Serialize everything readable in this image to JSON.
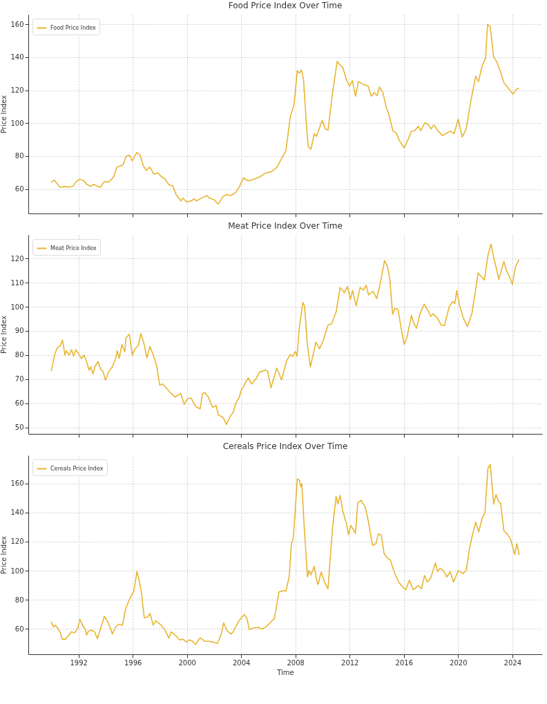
{
  "chart_data": [
    {
      "type": "line",
      "title": "Food Price Index Over Time",
      "ylabel": "Price Index",
      "xlim": [
        1988.3,
        2026.2
      ],
      "ylim": [
        45.2,
        165.9
      ],
      "xticks": [
        1992,
        1996,
        2000,
        2004,
        2008,
        2012,
        2016,
        2020,
        2024
      ],
      "yticks": [
        60,
        80,
        100,
        120,
        140,
        160
      ],
      "grid": true,
      "legend": "top left",
      "tick_labels": "y",
      "series": [
        {
          "name": "Food Price Index",
          "color": "#e8b530",
          "x": [
            1990.0,
            1990.2,
            1990.65,
            1991.04,
            1991.3,
            1991.63,
            1991.8,
            1992.1,
            1992.4,
            1992.6,
            1992.9,
            1993.1,
            1993.6,
            1993.9,
            1994.2,
            1994.4,
            1994.6,
            1994.83,
            1995.1,
            1995.3,
            1995.5,
            1995.75,
            1995.97,
            1996.3,
            1996.55,
            1996.77,
            1997.0,
            1997.27,
            1997.55,
            1997.86,
            1998.1,
            1998.35,
            1998.67,
            1998.95,
            1999.2,
            1999.55,
            1999.7,
            1999.97,
            2000.3,
            2000.55,
            2000.7,
            2000.98,
            2001.2,
            2001.48,
            2001.65,
            2001.99,
            2002.3,
            2002.66,
            2002.9,
            2003.25,
            2003.6,
            2003.85,
            2004.18,
            2004.52,
            2004.77,
            2005.2,
            2005.45,
            2005.8,
            2006.2,
            2006.62,
            2006.96,
            2007.3,
            2007.63,
            2007.89,
            2008.14,
            2008.28,
            2008.44,
            2008.6,
            2008.8,
            2008.94,
            2009.14,
            2009.4,
            2009.55,
            2009.98,
            2010.2,
            2010.41,
            2010.74,
            2011.08,
            2011.25,
            2011.5,
            2011.76,
            2011.98,
            2012.2,
            2012.43,
            2012.65,
            2013.02,
            2013.36,
            2013.6,
            2013.8,
            2014.03,
            2014.2,
            2014.45,
            2014.7,
            2014.88,
            2015.2,
            2015.45,
            2015.63,
            2016.02,
            2016.3,
            2016.56,
            2016.81,
            2017.06,
            2017.26,
            2017.53,
            2017.8,
            2018.0,
            2018.22,
            2018.5,
            2018.84,
            2019.17,
            2019.4,
            2019.7,
            2020.01,
            2020.3,
            2020.6,
            2020.94,
            2021.3,
            2021.5,
            2021.78,
            2022.03,
            2022.17,
            2022.37,
            2022.62,
            2022.87,
            2023.13,
            2023.38,
            2023.63,
            2024.05,
            2024.3,
            2024.47
          ],
          "values": [
            64.2,
            65.5,
            61,
            61.6,
            61,
            62,
            64.2,
            66.1,
            65,
            62.9,
            61.6,
            62.9,
            61,
            64.6,
            64.2,
            65.5,
            67.6,
            73.3,
            74,
            75,
            79.8,
            80.6,
            77.2,
            82.2,
            80.6,
            74.3,
            71.3,
            73.3,
            69.1,
            69.8,
            67.6,
            66.5,
            62.6,
            62,
            56.7,
            52.8,
            54.5,
            52.2,
            52.8,
            54.1,
            52.8,
            54.1,
            55,
            56.1,
            54.5,
            53.7,
            50.9,
            55.4,
            56.7,
            56.1,
            58,
            61.3,
            66.8,
            65,
            65.5,
            66.8,
            67.8,
            69.8,
            70.4,
            73,
            78.2,
            83.4,
            104.3,
            110.8,
            131.9,
            130.3,
            132.3,
            126.4,
            100.4,
            86.1,
            84.1,
            93.6,
            91.9,
            101.7,
            96.5,
            95.8,
            118.6,
            137.5,
            135.6,
            133.6,
            126.4,
            122.5,
            125.8,
            116.3,
            125.2,
            123.5,
            122.5,
            116.3,
            118.6,
            116.7,
            121.9,
            118.6,
            109.5,
            105.6,
            95.2,
            93.9,
            90,
            85,
            90,
            95.2,
            95.5,
            98.1,
            95.5,
            100.2,
            99.2,
            96.5,
            98.9,
            95.5,
            92.4,
            93.9,
            95.2,
            93.6,
            102.4,
            91.6,
            96.5,
            113.5,
            128.5,
            125.2,
            135,
            139.5,
            160,
            158.4,
            140.2,
            136.9,
            131,
            124.5,
            121.9,
            117.6,
            120.6,
            121
          ]
        }
      ]
    },
    {
      "type": "line",
      "title": "Meat Price Index Over Time",
      "ylabel": "Price Index",
      "xlim": [
        1988.3,
        2026.2
      ],
      "ylim": [
        47.3,
        129.8
      ],
      "xticks": [
        1992,
        1996,
        2000,
        2004,
        2008,
        2012,
        2016,
        2020,
        2024
      ],
      "yticks": [
        50,
        60,
        70,
        80,
        90,
        100,
        110,
        120
      ],
      "grid": true,
      "legend": "top left",
      "tick_labels": "y",
      "series": [
        {
          "name": "Meat Price Index",
          "color": "#e8b530",
          "x": [
            1990.0,
            1990.25,
            1990.45,
            1990.65,
            1990.82,
            1991.0,
            1991.1,
            1991.3,
            1991.5,
            1991.63,
            1991.8,
            1991.97,
            1992.22,
            1992.4,
            1992.56,
            1992.78,
            1992.9,
            1993.07,
            1993.24,
            1993.45,
            1993.62,
            1993.8,
            1993.99,
            1994.24,
            1994.5,
            1994.74,
            1994.86,
            1995.0,
            1995.2,
            1995.42,
            1995.5,
            1995.75,
            1995.97,
            1996.17,
            1996.42,
            1996.6,
            1996.82,
            1997.05,
            1997.27,
            1997.52,
            1997.77,
            1997.99,
            1998.22,
            1998.5,
            1998.78,
            1999.12,
            1999.54,
            1999.8,
            2000.04,
            2000.3,
            2000.64,
            2000.98,
            2001.15,
            2001.32,
            2001.57,
            2001.9,
            2002.15,
            2002.32,
            2002.66,
            2002.91,
            2003.16,
            2003.42,
            2003.6,
            2003.84,
            2004.0,
            2004.18,
            2004.52,
            2004.77,
            2005.1,
            2005.35,
            2005.8,
            2005.95,
            2006.2,
            2006.62,
            2006.98,
            2007.37,
            2007.63,
            2007.8,
            2008.0,
            2008.12,
            2008.3,
            2008.55,
            2008.67,
            2008.89,
            2009.1,
            2009.32,
            2009.51,
            2009.78,
            2010.06,
            2010.4,
            2010.68,
            2011.0,
            2011.3,
            2011.6,
            2011.84,
            2012.05,
            2012.22,
            2012.48,
            2012.77,
            2013.02,
            2013.22,
            2013.39,
            2013.73,
            2014.0,
            2014.23,
            2014.57,
            2014.79,
            2014.96,
            2015.17,
            2015.34,
            2015.57,
            2015.8,
            2016.02,
            2016.22,
            2016.56,
            2016.72,
            2016.93,
            2017.2,
            2017.5,
            2017.8,
            2017.98,
            2018.15,
            2018.5,
            2018.75,
            2019.0,
            2019.34,
            2019.6,
            2019.76,
            2019.9,
            2020.13,
            2020.4,
            2020.68,
            2021.02,
            2021.27,
            2021.47,
            2021.74,
            2021.94,
            2022.2,
            2022.42,
            2022.62,
            2022.8,
            2023.0,
            2023.38,
            2023.55,
            2023.8,
            2024.0,
            2024.22,
            2024.47
          ],
          "values": [
            73.5,
            80.4,
            83.1,
            83.8,
            86.2,
            80,
            81.8,
            80,
            82.2,
            79.5,
            82.2,
            80.9,
            78.5,
            80,
            77.8,
            73.7,
            75.1,
            72.2,
            75.5,
            77.3,
            74.2,
            73.3,
            69.6,
            73.3,
            75.1,
            78.6,
            81.8,
            78.6,
            84.4,
            81.3,
            87.1,
            88.6,
            80,
            82.6,
            84,
            88.9,
            85,
            78.8,
            83.5,
            80,
            75.5,
            67.5,
            68,
            66.2,
            64.4,
            62.6,
            64,
            59.5,
            61.9,
            62.2,
            58.6,
            57.7,
            64,
            64.4,
            62.6,
            58.2,
            59.1,
            55.1,
            54.2,
            51.2,
            54.2,
            56.4,
            60,
            62.2,
            65.3,
            67.1,
            70.5,
            68,
            70.2,
            72.9,
            73.7,
            73.3,
            66.4,
            74.6,
            69.7,
            77.8,
            80.2,
            79.4,
            81.5,
            79.5,
            92,
            101.8,
            100.4,
            84,
            75.1,
            80.4,
            85.3,
            82.6,
            86.2,
            92.4,
            92.9,
            97.8,
            108,
            105.8,
            108.4,
            103.1,
            106.7,
            100.4,
            108,
            106.9,
            108.9,
            104.9,
            106.4,
            103.4,
            108.9,
            119.1,
            116.9,
            111.5,
            96.9,
            99.3,
            98.9,
            91.1,
            84.4,
            87.1,
            96.4,
            93.3,
            91.1,
            97.3,
            101.1,
            98.2,
            96,
            97.1,
            95.1,
            92.4,
            92.2,
            100,
            102.2,
            101.3,
            106.7,
            100,
            95.1,
            91.8,
            97.3,
            106.2,
            114,
            112.3,
            111.1,
            121.3,
            126,
            120.6,
            116.4,
            111.4,
            118.8,
            115.3,
            112.3,
            109.3,
            116.4,
            119.4
          ]
        }
      ]
    },
    {
      "type": "line",
      "title": "Cereals Price Index Over Time",
      "xlabel": "Time",
      "ylabel": "Price Index",
      "xlim": [
        1988.3,
        2026.2
      ],
      "ylim": [
        42.4,
        179.5
      ],
      "xticks": [
        1992,
        1996,
        2000,
        2004,
        2008,
        2012,
        2016,
        2020,
        2024
      ],
      "yticks": [
        60,
        80,
        100,
        120,
        140,
        160
      ],
      "grid": true,
      "legend": "top left",
      "series": [
        {
          "name": "Cereals Price Index",
          "color": "#e8b530",
          "x": [
            1990.0,
            1990.15,
            1990.29,
            1990.45,
            1990.66,
            1990.79,
            1991.04,
            1991.3,
            1991.47,
            1991.72,
            1991.97,
            1992.1,
            1992.3,
            1992.5,
            1992.6,
            1992.72,
            1992.98,
            1993.18,
            1993.4,
            1993.66,
            1993.91,
            1994.13,
            1994.3,
            1994.5,
            1994.75,
            1994.97,
            1995.25,
            1995.47,
            1995.75,
            1996.09,
            1996.31,
            1996.52,
            1996.65,
            1996.85,
            1997.1,
            1997.27,
            1997.52,
            1997.69,
            1998.03,
            1998.37,
            1998.67,
            1998.84,
            1999.12,
            1999.46,
            1999.7,
            1999.97,
            2000.14,
            2000.39,
            2000.64,
            2000.98,
            2001.32,
            2001.65,
            2001.9,
            2002.24,
            2002.54,
            2002.71,
            2002.95,
            2003.25,
            2003.42,
            2003.59,
            2003.84,
            2004.23,
            2004.43,
            2004.6,
            2004.94,
            2005.28,
            2005.53,
            2005.86,
            2006.11,
            2006.45,
            2006.79,
            2007.13,
            2007.3,
            2007.55,
            2007.71,
            2007.83,
            2007.97,
            2008.14,
            2008.3,
            2008.39,
            2008.47,
            2008.64,
            2008.89,
            2009.0,
            2009.14,
            2009.39,
            2009.55,
            2009.67,
            2009.9,
            2010.15,
            2010.4,
            2010.74,
            2011.0,
            2011.13,
            2011.3,
            2011.5,
            2011.76,
            2011.92,
            2012.09,
            2012.43,
            2012.6,
            2012.85,
            2013.15,
            2013.36,
            2013.69,
            2013.94,
            2014.11,
            2014.33,
            2014.54,
            2014.79,
            2015.0,
            2015.3,
            2015.63,
            2015.88,
            2016.14,
            2016.4,
            2016.69,
            2017.06,
            2017.3,
            2017.53,
            2017.73,
            2017.98,
            2018.32,
            2018.49,
            2018.66,
            2018.91,
            2019.16,
            2019.42,
            2019.67,
            2020.01,
            2020.35,
            2020.6,
            2020.85,
            2021.07,
            2021.3,
            2021.52,
            2021.78,
            2021.98,
            2022.2,
            2022.37,
            2022.62,
            2022.8,
            2022.99,
            2023.13,
            2023.38,
            2023.63,
            2023.88,
            2024.17,
            2024.34,
            2024.5
          ],
          "values": [
            64.6,
            61.2,
            62.4,
            60.6,
            57.2,
            52.8,
            52.8,
            55.7,
            57.9,
            57.2,
            60.9,
            66.5,
            62.4,
            59.4,
            55.7,
            58.2,
            59,
            57.9,
            53.2,
            60.9,
            68.6,
            65.3,
            61.6,
            56.4,
            61.2,
            63.1,
            62.4,
            73.5,
            80.1,
            86.3,
            99.6,
            91.2,
            84.6,
            67.5,
            68,
            70.5,
            62.4,
            65.6,
            63.1,
            59.4,
            53.5,
            57.9,
            55.7,
            52.3,
            52.8,
            50.8,
            52.3,
            51.7,
            49.1,
            53.8,
            51.3,
            51.3,
            50.8,
            49.8,
            56.4,
            64.1,
            58.7,
            56.4,
            57.9,
            61.2,
            65.6,
            69.8,
            66.8,
            59.4,
            60.6,
            60.9,
            59.7,
            61.6,
            63.8,
            67.1,
            85.3,
            86.3,
            85.7,
            96.4,
            119.3,
            121.2,
            139.3,
            163.3,
            162.2,
            157.8,
            160,
            131.9,
            95.7,
            100.1,
            97.1,
            103,
            94.2,
            90.5,
            99.1,
            92,
            87.5,
            129.7,
            151.1,
            145.9,
            151.8,
            140.8,
            132.6,
            124.8,
            131.2,
            125.7,
            146.7,
            148.5,
            143.7,
            134.9,
            117.4,
            118.6,
            125.2,
            124.5,
            111.9,
            108.5,
            107.5,
            98.6,
            92,
            89,
            86.8,
            93.4,
            86.8,
            89.7,
            87.5,
            96.7,
            92.2,
            94.9,
            105.3,
            99.3,
            101.6,
            100.1,
            95.7,
            99.3,
            92.2,
            100.1,
            97.9,
            100.1,
            115.6,
            125.2,
            133.4,
            126.7,
            136.3,
            140,
            170.4,
            173.3,
            145.9,
            152.5,
            147.3,
            146.6,
            127.5,
            125.2,
            121.5,
            111.2,
            118.6,
            111.2
          ]
        }
      ]
    }
  ]
}
